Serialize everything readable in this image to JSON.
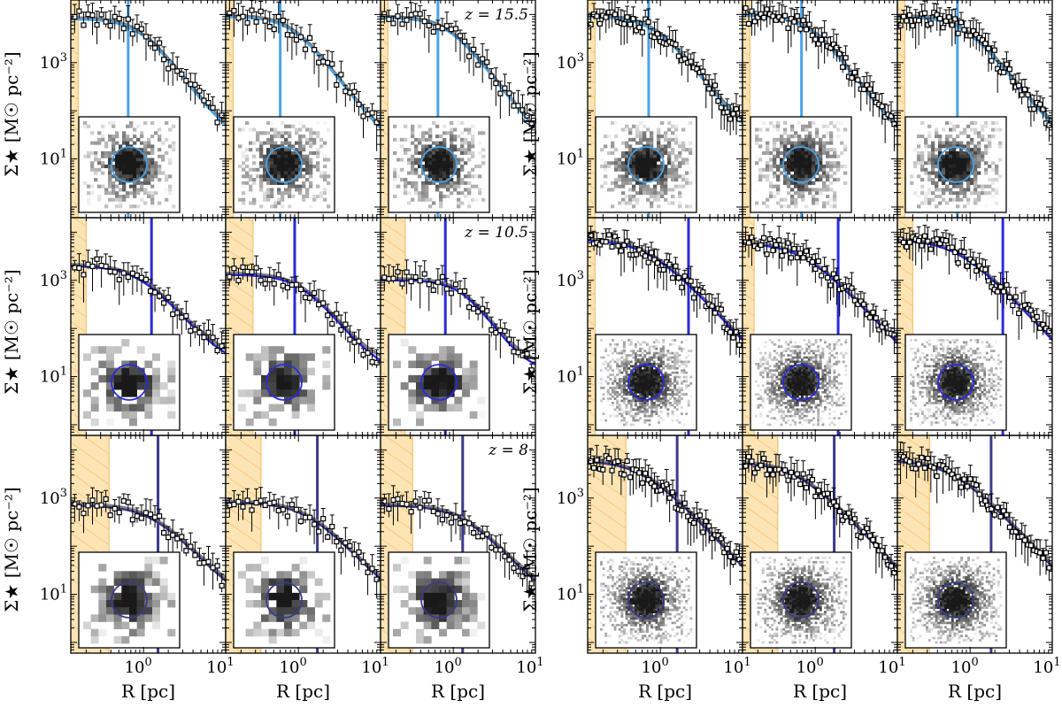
{
  "figure": {
    "ylabel_text": "Σ★ [M☉ pc⁻²]",
    "xlabel_text": "R [pc]",
    "colors": {
      "row1": "#4aa3e8",
      "row2": "#2a2ae0",
      "row3": "#3a3a8c",
      "gray_fit": "#808080",
      "shade": "#fde4b4",
      "shade_hatch": "#f4b860",
      "points": "#000000"
    }
  },
  "chart_data": {
    "type": "scatter",
    "layout": "3 rows × 2 groups × 3 panels, log-log axes",
    "xlabel": "R [pc]",
    "ylabel": "Σ★ [M☉ pc⁻²]",
    "xscale": "log",
    "yscale": "log",
    "xlim": [
      0.13,
      10
    ],
    "ylim": [
      0.6,
      20000
    ],
    "xtick_labels": [
      "10^0",
      "10^1"
    ],
    "ytick_labels": [
      "10^1",
      "10^3"
    ],
    "legend": "none",
    "grid": false,
    "annotations": [
      {
        "row": 0,
        "text": "z = 15.5"
      },
      {
        "row": 1,
        "text": "z = 10.5"
      },
      {
        "row": 2,
        "text": "z = 8"
      }
    ],
    "rows": [
      {
        "z": 15.5,
        "color": "#4aa3e8",
        "panels": [
          {
            "shade": 0.16,
            "vline": 0.65,
            "sig0": 8000,
            "rs": 0.9,
            "n": 2.3,
            "floor": 20,
            "circ": 0.32
          },
          {
            "shade": 0.16,
            "vline": 0.6,
            "sig0": 9000,
            "rs": 0.85,
            "n": 2.3,
            "floor": 12,
            "circ": 0.32
          },
          {
            "shade": 0.16,
            "vline": 0.65,
            "sig0": 8500,
            "rs": 0.9,
            "n": 2.3,
            "floor": 10,
            "circ": 0.32
          },
          {
            "shade": 0.16,
            "vline": 0.72,
            "sig0": 9000,
            "rs": 0.85,
            "n": 2.2,
            "floor": 15,
            "circ": 0.32
          },
          {
            "shade": 0.16,
            "vline": 0.68,
            "sig0": 9500,
            "rs": 0.85,
            "n": 2.3,
            "floor": 12,
            "circ": 0.32
          },
          {
            "shade": 0.16,
            "vline": 0.7,
            "sig0": 9000,
            "rs": 0.85,
            "n": 2.2,
            "floor": 15,
            "circ": 0.32
          }
        ]
      },
      {
        "z": 10.5,
        "color": "#2a2ae0",
        "panels": [
          {
            "shade": 0.2,
            "vline": 1.25,
            "sig0": 2000,
            "rs": 0.9,
            "n": 2.0,
            "floor": 15,
            "circ": 0.28
          },
          {
            "shade": 0.28,
            "vline": 0.9,
            "sig0": 1300,
            "rs": 1.1,
            "n": 2.2,
            "floor": 12,
            "circ": 0.28
          },
          {
            "shade": 0.26,
            "vline": 0.8,
            "sig0": 1000,
            "rs": 1.3,
            "n": 2.5,
            "floor": 12,
            "circ": 0.28
          },
          {
            "shade": 0.16,
            "vline": 2.2,
            "sig0": 7000,
            "rs": 0.7,
            "n": 1.8,
            "floor": 0,
            "circ": 0.24
          },
          {
            "shade": 0.18,
            "vline": 1.9,
            "sig0": 6000,
            "rs": 0.7,
            "n": 1.8,
            "floor": 0,
            "circ": 0.24
          },
          {
            "shade": 0.2,
            "vline": 2.5,
            "sig0": 7000,
            "rs": 0.7,
            "n": 1.8,
            "floor": 0,
            "circ": 0.24
          }
        ]
      },
      {
        "z": 8,
        "color": "#3a3a8c",
        "panels": [
          {
            "shade": 0.38,
            "vline": 1.5,
            "sig0": 700,
            "rs": 1.3,
            "n": 1.9,
            "floor": 5,
            "circ": 0.26
          },
          {
            "shade": 0.35,
            "vline": 1.7,
            "sig0": 800,
            "rs": 1.3,
            "n": 1.9,
            "floor": 5,
            "circ": 0.26
          },
          {
            "shade": 0.32,
            "vline": 1.3,
            "sig0": 700,
            "rs": 1.3,
            "n": 1.9,
            "floor": 5,
            "circ": 0.26
          },
          {
            "shade": 0.38,
            "vline": 1.6,
            "sig0": 6000,
            "rs": 0.6,
            "n": 1.8,
            "floor": 0,
            "circ": 0.24
          },
          {
            "shade": 0.35,
            "vline": 1.7,
            "sig0": 5500,
            "rs": 0.6,
            "n": 1.8,
            "floor": 0,
            "circ": 0.24
          },
          {
            "shade": 0.32,
            "vline": 1.8,
            "sig0": 6000,
            "rs": 0.6,
            "n": 1.8,
            "floor": 0,
            "circ": 0.24
          }
        ]
      }
    ]
  }
}
